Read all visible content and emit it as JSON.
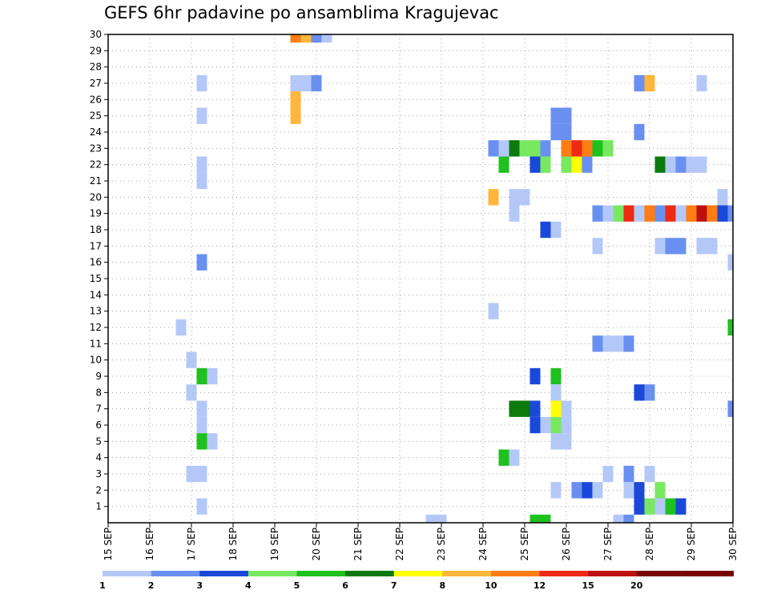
{
  "chart_data": {
    "type": "heatmap",
    "title": "GEFS 6hr padavine po ansamblima Kragujevac",
    "xlabel": "",
    "ylabel": "",
    "x_ticks": [
      "15 SEP",
      "16 SEP",
      "17 SEP",
      "18 SEP",
      "19 SEP",
      "20 SEP",
      "21 SEP",
      "22 SEP",
      "23 SEP",
      "24 SEP",
      "25 SEP",
      "26 SEP",
      "27 SEP",
      "28 SEP",
      "29 SEP",
      "30 SEP"
    ],
    "xlim": [
      0,
      60
    ],
    "y_ticks": [
      1,
      2,
      3,
      4,
      5,
      6,
      7,
      8,
      9,
      10,
      11,
      12,
      13,
      14,
      15,
      16,
      17,
      18,
      19,
      20,
      21,
      22,
      23,
      24,
      25,
      26,
      27,
      28,
      29,
      30
    ],
    "ylim": [
      0,
      30
    ],
    "grid": true,
    "legend": {
      "position": "bottom",
      "bins": [
        {
          "label": "1",
          "color": "#b4c8f8"
        },
        {
          "label": "2",
          "color": "#6990f0"
        },
        {
          "label": "3",
          "color": "#1a48d8"
        },
        {
          "label": "4",
          "color": "#78e860"
        },
        {
          "label": "5",
          "color": "#1ec11e"
        },
        {
          "label": "6",
          "color": "#0c7a0c"
        },
        {
          "label": "7",
          "color": "#ffff00"
        },
        {
          "label": "8",
          "color": "#ffb63c"
        },
        {
          "label": "10",
          "color": "#ff7d12"
        },
        {
          "label": "12",
          "color": "#ee2a12"
        },
        {
          "label": "15",
          "color": "#bc1010"
        },
        {
          "label": "20",
          "color": "#7a0606"
        }
      ],
      "last_bin": {
        "label": "",
        "color": "#780000"
      }
    },
    "cells": [
      {
        "step": 18,
        "member": 30,
        "bin": 9
      },
      {
        "step": 19,
        "member": 30,
        "bin": 8
      },
      {
        "step": 20,
        "member": 30,
        "bin": 2
      },
      {
        "step": 21,
        "member": 30,
        "bin": 1
      },
      {
        "step": 9,
        "member": 27,
        "bin": 1
      },
      {
        "step": 18,
        "member": 27,
        "bin": 1
      },
      {
        "step": 19,
        "member": 27,
        "bin": 1
      },
      {
        "step": 20,
        "member": 27,
        "bin": 2
      },
      {
        "step": 51,
        "member": 27,
        "bin": 2
      },
      {
        "step": 52,
        "member": 27,
        "bin": 8
      },
      {
        "step": 57,
        "member": 27,
        "bin": 1
      },
      {
        "step": 18,
        "member": 26,
        "bin": 8
      },
      {
        "step": 9,
        "member": 25,
        "bin": 1
      },
      {
        "step": 18,
        "member": 25,
        "bin": 8
      },
      {
        "step": 43,
        "member": 25,
        "bin": 2
      },
      {
        "step": 44,
        "member": 25,
        "bin": 2
      },
      {
        "step": 43,
        "member": 24,
        "bin": 2
      },
      {
        "step": 44,
        "member": 24,
        "bin": 2
      },
      {
        "step": 51,
        "member": 24,
        "bin": 2
      },
      {
        "step": 37,
        "member": 23,
        "bin": 2
      },
      {
        "step": 38,
        "member": 23,
        "bin": 1
      },
      {
        "step": 39,
        "member": 23,
        "bin": 6
      },
      {
        "step": 40,
        "member": 23,
        "bin": 4
      },
      {
        "step": 41,
        "member": 23,
        "bin": 4
      },
      {
        "step": 42,
        "member": 23,
        "bin": 2
      },
      {
        "step": 44,
        "member": 23,
        "bin": 9
      },
      {
        "step": 45,
        "member": 23,
        "bin": 10
      },
      {
        "step": 46,
        "member": 23,
        "bin": 9
      },
      {
        "step": 47,
        "member": 23,
        "bin": 5
      },
      {
        "step": 48,
        "member": 23,
        "bin": 4
      },
      {
        "step": 9,
        "member": 22,
        "bin": 1
      },
      {
        "step": 38,
        "member": 22,
        "bin": 5
      },
      {
        "step": 41,
        "member": 22,
        "bin": 3
      },
      {
        "step": 42,
        "member": 22,
        "bin": 4
      },
      {
        "step": 44,
        "member": 22,
        "bin": 4
      },
      {
        "step": 45,
        "member": 22,
        "bin": 7
      },
      {
        "step": 46,
        "member": 22,
        "bin": 2
      },
      {
        "step": 53,
        "member": 22,
        "bin": 6
      },
      {
        "step": 54,
        "member": 22,
        "bin": 1
      },
      {
        "step": 55,
        "member": 22,
        "bin": 2
      },
      {
        "step": 56,
        "member": 22,
        "bin": 1
      },
      {
        "step": 57,
        "member": 22,
        "bin": 1
      },
      {
        "step": 9,
        "member": 21,
        "bin": 1
      },
      {
        "step": 37,
        "member": 20,
        "bin": 8
      },
      {
        "step": 39,
        "member": 20,
        "bin": 1
      },
      {
        "step": 40,
        "member": 20,
        "bin": 1
      },
      {
        "step": 59,
        "member": 20,
        "bin": 1
      },
      {
        "step": 39,
        "member": 19,
        "bin": 1
      },
      {
        "step": 47,
        "member": 19,
        "bin": 2
      },
      {
        "step": 48,
        "member": 19,
        "bin": 1
      },
      {
        "step": 49,
        "member": 19,
        "bin": 4
      },
      {
        "step": 50,
        "member": 19,
        "bin": 10
      },
      {
        "step": 51,
        "member": 19,
        "bin": 1
      },
      {
        "step": 52,
        "member": 19,
        "bin": 9
      },
      {
        "step": 53,
        "member": 19,
        "bin": 2
      },
      {
        "step": 54,
        "member": 19,
        "bin": 10
      },
      {
        "step": 55,
        "member": 19,
        "bin": 1
      },
      {
        "step": 56,
        "member": 19,
        "bin": 9
      },
      {
        "step": 57,
        "member": 19,
        "bin": 11
      },
      {
        "step": 58,
        "member": 19,
        "bin": 9
      },
      {
        "step": 59,
        "member": 19,
        "bin": 3
      },
      {
        "step": 60,
        "member": 19,
        "bin": 2
      },
      {
        "step": 42,
        "member": 18,
        "bin": 3
      },
      {
        "step": 43,
        "member": 18,
        "bin": 1
      },
      {
        "step": 47,
        "member": 17,
        "bin": 1
      },
      {
        "step": 53,
        "member": 17,
        "bin": 1
      },
      {
        "step": 54,
        "member": 17,
        "bin": 2
      },
      {
        "step": 55,
        "member": 17,
        "bin": 2
      },
      {
        "step": 57,
        "member": 17,
        "bin": 1
      },
      {
        "step": 58,
        "member": 17,
        "bin": 1
      },
      {
        "step": 9,
        "member": 16,
        "bin": 2
      },
      {
        "step": 60,
        "member": 16,
        "bin": 1
      },
      {
        "step": 37,
        "member": 13,
        "bin": 1
      },
      {
        "step": 7,
        "member": 12,
        "bin": 1
      },
      {
        "step": 60,
        "member": 12,
        "bin": 5
      },
      {
        "step": 47,
        "member": 11,
        "bin": 2
      },
      {
        "step": 48,
        "member": 11,
        "bin": 1
      },
      {
        "step": 49,
        "member": 11,
        "bin": 1
      },
      {
        "step": 50,
        "member": 11,
        "bin": 2
      },
      {
        "step": 8,
        "member": 10,
        "bin": 1
      },
      {
        "step": 9,
        "member": 9,
        "bin": 5
      },
      {
        "step": 10,
        "member": 9,
        "bin": 1
      },
      {
        "step": 41,
        "member": 9,
        "bin": 3
      },
      {
        "step": 43,
        "member": 9,
        "bin": 5
      },
      {
        "step": 8,
        "member": 8,
        "bin": 1
      },
      {
        "step": 43,
        "member": 8,
        "bin": 1
      },
      {
        "step": 51,
        "member": 8,
        "bin": 3
      },
      {
        "step": 52,
        "member": 8,
        "bin": 2
      },
      {
        "step": 9,
        "member": 7,
        "bin": 1
      },
      {
        "step": 39,
        "member": 7,
        "bin": 6
      },
      {
        "step": 40,
        "member": 7,
        "bin": 6
      },
      {
        "step": 41,
        "member": 7,
        "bin": 3
      },
      {
        "step": 43,
        "member": 7,
        "bin": 7
      },
      {
        "step": 44,
        "member": 7,
        "bin": 1
      },
      {
        "step": 60,
        "member": 7,
        "bin": 2
      },
      {
        "step": 9,
        "member": 6,
        "bin": 1
      },
      {
        "step": 41,
        "member": 6,
        "bin": 3
      },
      {
        "step": 42,
        "member": 6,
        "bin": 1
      },
      {
        "step": 43,
        "member": 6,
        "bin": 4
      },
      {
        "step": 44,
        "member": 6,
        "bin": 1
      },
      {
        "step": 9,
        "member": 5,
        "bin": 5
      },
      {
        "step": 10,
        "member": 5,
        "bin": 1
      },
      {
        "step": 43,
        "member": 5,
        "bin": 1
      },
      {
        "step": 44,
        "member": 5,
        "bin": 1
      },
      {
        "step": 38,
        "member": 4,
        "bin": 5
      },
      {
        "step": 39,
        "member": 4,
        "bin": 1
      },
      {
        "step": 8,
        "member": 3,
        "bin": 1
      },
      {
        "step": 9,
        "member": 3,
        "bin": 1
      },
      {
        "step": 48,
        "member": 3,
        "bin": 1
      },
      {
        "step": 50,
        "member": 3,
        "bin": 2
      },
      {
        "step": 52,
        "member": 3,
        "bin": 1
      },
      {
        "step": 43,
        "member": 2,
        "bin": 1
      },
      {
        "step": 45,
        "member": 2,
        "bin": 2
      },
      {
        "step": 46,
        "member": 2,
        "bin": 3
      },
      {
        "step": 47,
        "member": 2,
        "bin": 1
      },
      {
        "step": 50,
        "member": 2,
        "bin": 1
      },
      {
        "step": 51,
        "member": 2,
        "bin": 3
      },
      {
        "step": 53,
        "member": 2,
        "bin": 4
      },
      {
        "step": 9,
        "member": 1,
        "bin": 1
      },
      {
        "step": 51,
        "member": 1,
        "bin": 3
      },
      {
        "step": 52,
        "member": 1,
        "bin": 4
      },
      {
        "step": 53,
        "member": 1,
        "bin": 1
      },
      {
        "step": 54,
        "member": 1,
        "bin": 5
      },
      {
        "step": 55,
        "member": 1,
        "bin": 3
      },
      {
        "step": 31,
        "member": 0,
        "bin": 1
      },
      {
        "step": 32,
        "member": 0,
        "bin": 1
      },
      {
        "step": 41,
        "member": 0,
        "bin": 5
      },
      {
        "step": 42,
        "member": 0,
        "bin": 5
      },
      {
        "step": 49,
        "member": 0,
        "bin": 1
      },
      {
        "step": 50,
        "member": 0,
        "bin": 2
      }
    ]
  }
}
